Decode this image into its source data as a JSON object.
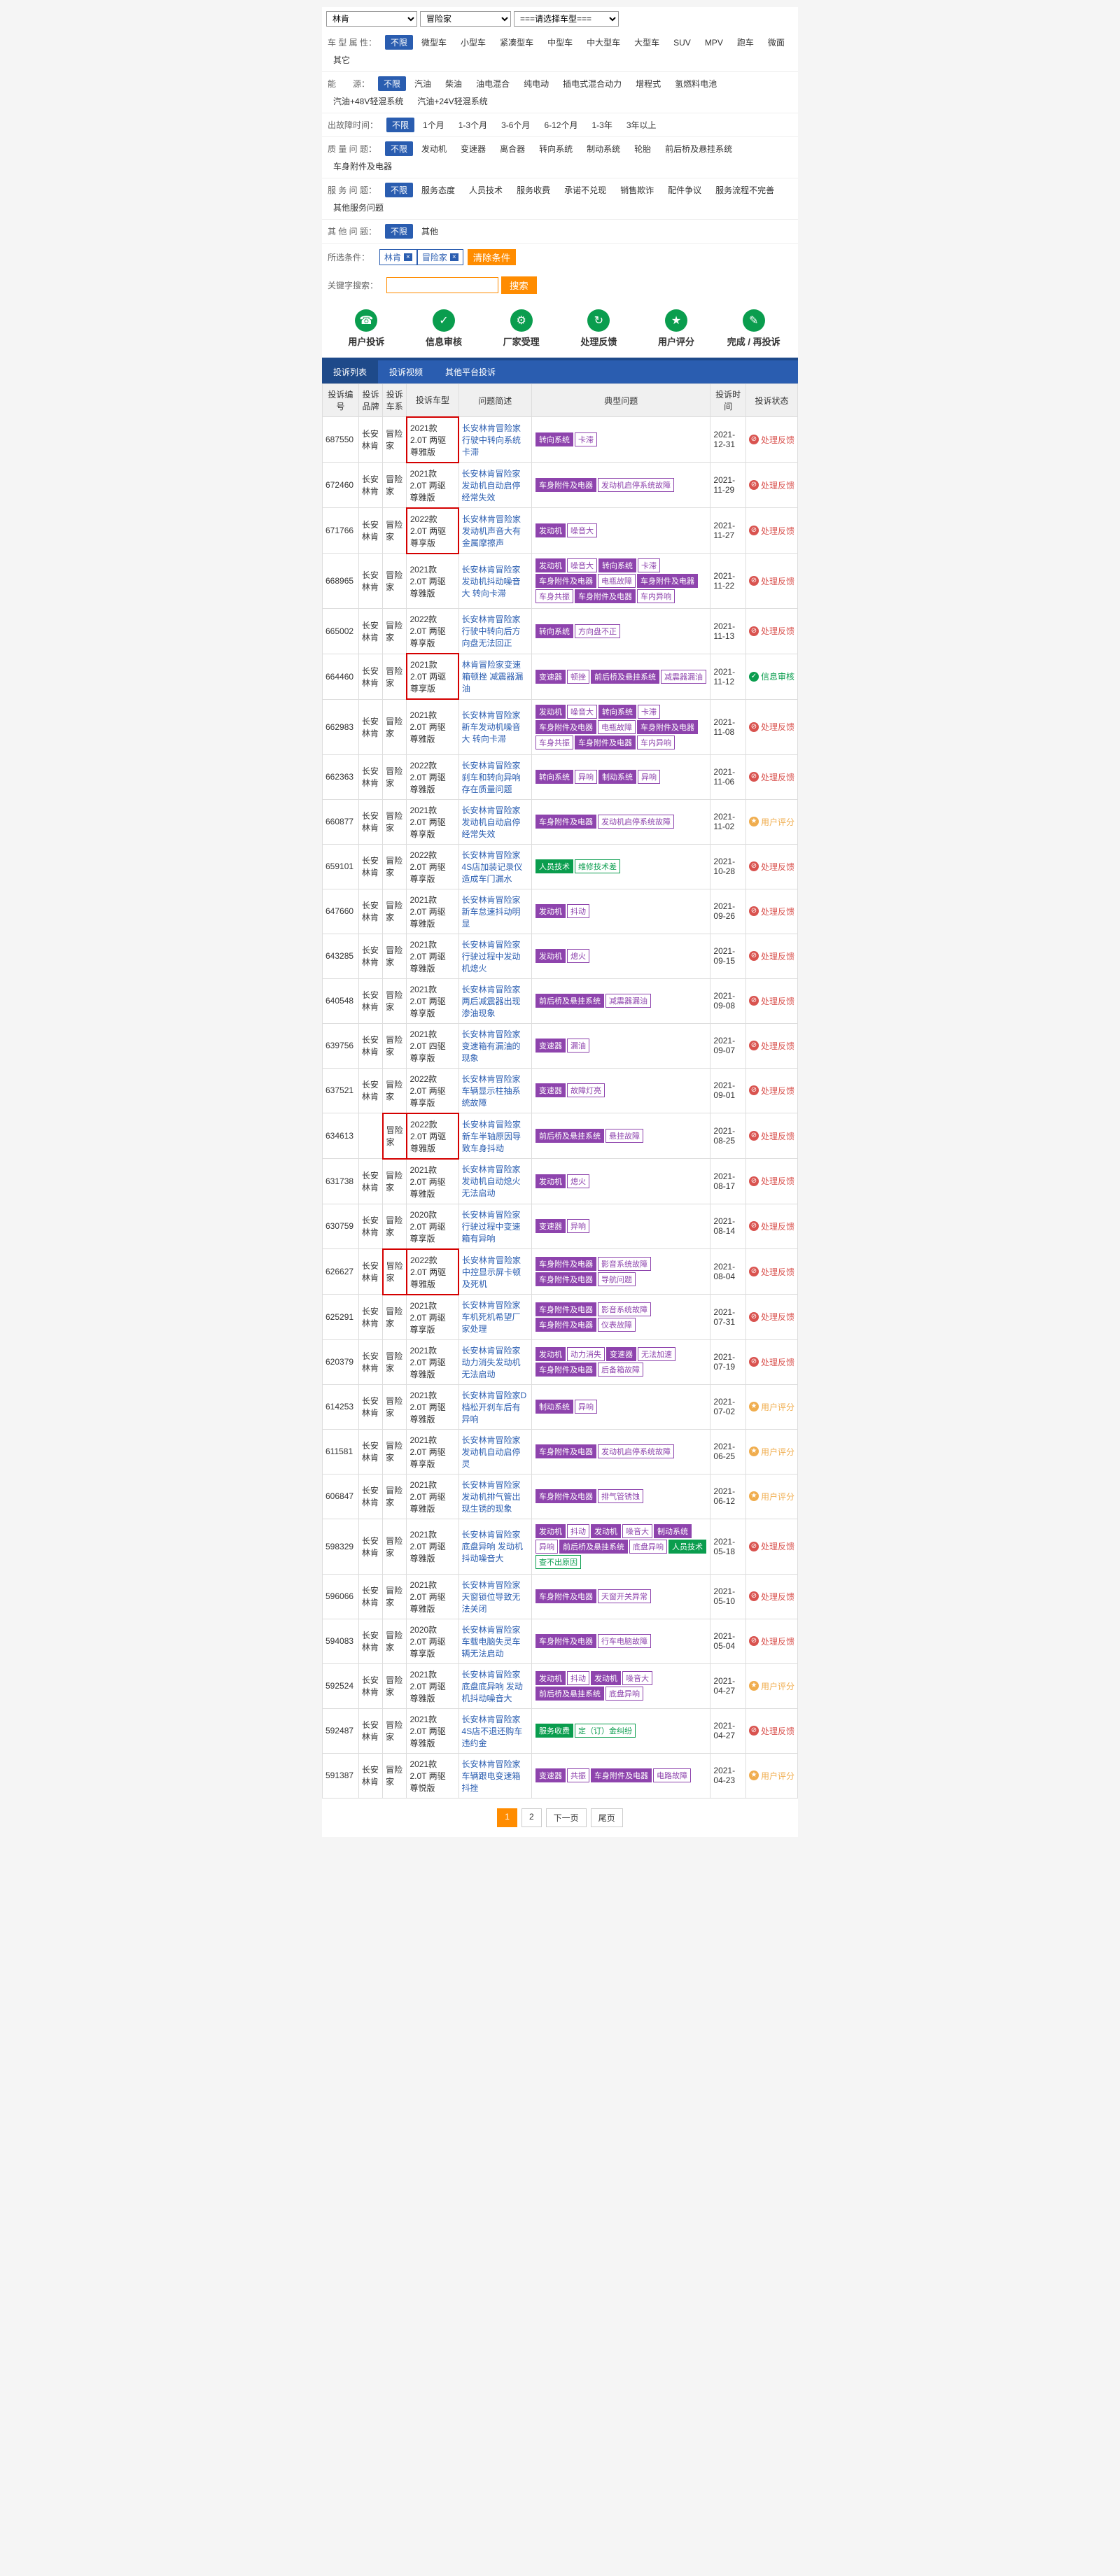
{
  "selects": {
    "brand": "林肯",
    "series": "冒险家",
    "model": "===请选择车型==="
  },
  "filters": [
    {
      "label": "车 型 属 性：",
      "active": "不限",
      "items": [
        "微型车",
        "小型车",
        "紧凑型车",
        "中型车",
        "中大型车",
        "大型车",
        "SUV",
        "MPV",
        "跑车",
        "微面",
        "其它"
      ]
    },
    {
      "label": "能　　源：",
      "active": "不限",
      "items": [
        "汽油",
        "柴油",
        "油电混合",
        "纯电动",
        "插电式混合动力",
        "增程式",
        "氢燃料电池",
        "汽油+48V轻混系统",
        "汽油+24V轻混系统"
      ]
    },
    {
      "label": "出故障时间：",
      "active": "不限",
      "items": [
        "1个月",
        "1-3个月",
        "3-6个月",
        "6-12个月",
        "1-3年",
        "3年以上"
      ]
    },
    {
      "label": "质 量 问 题：",
      "active": "不限",
      "items": [
        "发动机",
        "变速器",
        "离合器",
        "转向系统",
        "制动系统",
        "轮胎",
        "前后桥及悬挂系统",
        "车身附件及电器"
      ]
    },
    {
      "label": "服 务 问 题：",
      "active": "不限",
      "items": [
        "服务态度",
        "人员技术",
        "服务收费",
        "承诺不兑现",
        "销售欺诈",
        "配件争议",
        "服务流程不完善",
        "其他服务问题"
      ]
    },
    {
      "label": "其 他 问 题：",
      "active": "不限",
      "items": [
        "其他"
      ]
    }
  ],
  "conditions": {
    "label": "所选条件：",
    "tags": [
      "林肯",
      "冒险家"
    ],
    "clear": "清除条件"
  },
  "search": {
    "label": "关键字搜索：",
    "btn": "搜索"
  },
  "steps": [
    "用户投诉",
    "信息审核",
    "厂家受理",
    "处理反馈",
    "用户评分",
    "完成 / 再投诉"
  ],
  "step_icons": [
    "☎",
    "✓",
    "⚙",
    "↻",
    "★",
    "✎"
  ],
  "tabs": [
    "投诉列表",
    "投诉视频",
    "其他平台投诉"
  ],
  "columns": [
    "投诉编号",
    "投诉品牌",
    "投诉车系",
    "投诉车型",
    "问题简述",
    "典型问题",
    "投诉时间",
    "投诉状态"
  ],
  "status_map": {
    "处理反馈": {
      "cls": "red",
      "ico": "⊘"
    },
    "信息审核": {
      "cls": "green",
      "ico": "✓"
    },
    "用户评分": {
      "cls": "orange",
      "ico": "★"
    }
  },
  "rows": [
    {
      "id": "687550",
      "brand": "长安林肯",
      "series": "冒险家",
      "model": "2021款 2.0T 两驱 尊雅版",
      "desc": "长安林肯冒险家行驶中转向系统卡滞",
      "tags": [
        {
          "t": "转向系统",
          "s": "purple-fill"
        },
        {
          "t": "卡滞",
          "s": "purple-out"
        }
      ],
      "date": "2021-12-31",
      "status": "处理反馈",
      "redbox": "model"
    },
    {
      "id": "672460",
      "brand": "长安林肯",
      "series": "冒险家",
      "model": "2021款 2.0T 两驱 尊雅版",
      "desc": "长安林肯冒险家发动机自动启停经常失效",
      "tags": [
        {
          "t": "车身附件及电器",
          "s": "purple-fill"
        },
        {
          "t": "发动机启停系统故障",
          "s": "purple-out"
        }
      ],
      "date": "2021-11-29",
      "status": "处理反馈"
    },
    {
      "id": "671766",
      "brand": "长安林肯",
      "series": "冒险家",
      "model": "2022款 2.0T 两驱 尊享版",
      "desc": "长安林肯冒险家发动机声音大有金属摩擦声",
      "tags": [
        {
          "t": "发动机",
          "s": "purple-fill"
        },
        {
          "t": "噪音大",
          "s": "purple-out"
        }
      ],
      "date": "2021-11-27",
      "status": "处理反馈",
      "redbox": "model"
    },
    {
      "id": "668965",
      "brand": "长安林肯",
      "series": "冒险家",
      "model": "2021款 2.0T 两驱 尊雅版",
      "desc": "长安林肯冒险家发动机抖动噪音大 转向卡滞",
      "tags": [
        {
          "t": "发动机",
          "s": "purple-fill"
        },
        {
          "t": "噪音大",
          "s": "purple-out"
        },
        {
          "t": "转向系统",
          "s": "purple-fill"
        },
        {
          "t": "卡滞",
          "s": "purple-out"
        },
        {
          "t": "车身附件及电器",
          "s": "purple-fill"
        },
        {
          "t": "电瓶故障",
          "s": "purple-out"
        },
        {
          "t": "车身附件及电器",
          "s": "purple-fill"
        },
        {
          "t": "车身共振",
          "s": "purple-out"
        },
        {
          "t": "车身附件及电器",
          "s": "purple-fill"
        },
        {
          "t": "车内异响",
          "s": "purple-out"
        }
      ],
      "date": "2021-11-22",
      "status": "处理反馈"
    },
    {
      "id": "665002",
      "brand": "长安林肯",
      "series": "冒险家",
      "model": "2022款 2.0T 两驱 尊享版",
      "desc": "长安林肯冒险家行驶中转向后方向盘无法回正",
      "tags": [
        {
          "t": "转向系统",
          "s": "purple-fill"
        },
        {
          "t": "方向盘不正",
          "s": "purple-out"
        }
      ],
      "date": "2021-11-13",
      "status": "处理反馈"
    },
    {
      "id": "664460",
      "brand": "长安林肯",
      "series": "冒险家",
      "model": "2021款 2.0T 两驱 尊享版",
      "desc": "林肯冒险家变速箱顿挫 减震器漏油",
      "tags": [
        {
          "t": "变速器",
          "s": "purple-fill"
        },
        {
          "t": "顿挫",
          "s": "purple-out"
        },
        {
          "t": "前后桥及悬挂系统",
          "s": "purple-fill"
        },
        {
          "t": "减震器漏油",
          "s": "purple-out"
        }
      ],
      "date": "2021-11-12",
      "status": "信息审核",
      "redbox": "model"
    },
    {
      "id": "662983",
      "brand": "长安林肯",
      "series": "冒险家",
      "model": "2021款 2.0T 两驱 尊雅版",
      "desc": "长安林肯冒险家新车发动机噪音大 转向卡滞",
      "tags": [
        {
          "t": "发动机",
          "s": "purple-fill"
        },
        {
          "t": "噪音大",
          "s": "purple-out"
        },
        {
          "t": "转向系统",
          "s": "purple-fill"
        },
        {
          "t": "卡滞",
          "s": "purple-out"
        },
        {
          "t": "车身附件及电器",
          "s": "purple-fill"
        },
        {
          "t": "电瓶故障",
          "s": "purple-out"
        },
        {
          "t": "车身附件及电器",
          "s": "purple-fill"
        },
        {
          "t": "车身共振",
          "s": "purple-out"
        },
        {
          "t": "车身附件及电器",
          "s": "purple-fill"
        },
        {
          "t": "车内异响",
          "s": "purple-out"
        }
      ],
      "date": "2021-11-08",
      "status": "处理反馈"
    },
    {
      "id": "662363",
      "brand": "长安林肯",
      "series": "冒险家",
      "model": "2022款 2.0T 两驱 尊雅版",
      "desc": "长安林肯冒险家刹车和转向异响存在质量问题",
      "tags": [
        {
          "t": "转向系统",
          "s": "purple-fill"
        },
        {
          "t": "异响",
          "s": "purple-out"
        },
        {
          "t": "制动系统",
          "s": "purple-fill"
        },
        {
          "t": "异响",
          "s": "purple-out"
        }
      ],
      "date": "2021-11-06",
      "status": "处理反馈"
    },
    {
      "id": "660877",
      "brand": "长安林肯",
      "series": "冒险家",
      "model": "2021款 2.0T 两驱 尊享版",
      "desc": "长安林肯冒险家发动机自动启停经常失效",
      "tags": [
        {
          "t": "车身附件及电器",
          "s": "purple-fill"
        },
        {
          "t": "发动机启停系统故障",
          "s": "purple-out"
        }
      ],
      "date": "2021-11-02",
      "status": "用户评分"
    },
    {
      "id": "659101",
      "brand": "长安林肯",
      "series": "冒险家",
      "model": "2022款 2.0T 两驱 尊享版",
      "desc": "长安林肯冒险家4S店加装记录仪造成车门漏水",
      "tags": [
        {
          "t": "人员技术",
          "s": "green-fill"
        },
        {
          "t": "维修技术差",
          "s": "green-out"
        }
      ],
      "date": "2021-10-28",
      "status": "处理反馈"
    },
    {
      "id": "647660",
      "brand": "长安林肯",
      "series": "冒险家",
      "model": "2021款 2.0T 两驱 尊雅版",
      "desc": "长安林肯冒险家新车怠速抖动明显",
      "tags": [
        {
          "t": "发动机",
          "s": "purple-fill"
        },
        {
          "t": "抖动",
          "s": "purple-out"
        }
      ],
      "date": "2021-09-26",
      "status": "处理反馈"
    },
    {
      "id": "643285",
      "brand": "长安林肯",
      "series": "冒险家",
      "model": "2021款 2.0T 两驱 尊雅版",
      "desc": "长安林肯冒险家行驶过程中发动机熄火",
      "tags": [
        {
          "t": "发动机",
          "s": "purple-fill"
        },
        {
          "t": "熄火",
          "s": "purple-out"
        }
      ],
      "date": "2021-09-15",
      "status": "处理反馈"
    },
    {
      "id": "640548",
      "brand": "长安林肯",
      "series": "冒险家",
      "model": "2021款 2.0T 两驱 尊享版",
      "desc": "长安林肯冒险家两后减震器出现渗油现象",
      "tags": [
        {
          "t": "前后桥及悬挂系统",
          "s": "purple-fill"
        },
        {
          "t": "减震器漏油",
          "s": "purple-out"
        }
      ],
      "date": "2021-09-08",
      "status": "处理反馈"
    },
    {
      "id": "639756",
      "brand": "长安林肯",
      "series": "冒险家",
      "model": "2021款 2.0T 四驱 尊享版",
      "desc": "长安林肯冒险家变速箱有漏油的现象",
      "tags": [
        {
          "t": "变速器",
          "s": "purple-fill"
        },
        {
          "t": "漏油",
          "s": "purple-out"
        }
      ],
      "date": "2021-09-07",
      "status": "处理反馈"
    },
    {
      "id": "637521",
      "brand": "长安林肯",
      "series": "冒险家",
      "model": "2022款 2.0T 两驱 尊享版",
      "desc": "长安林肯冒险家车辆显示柱抽系统故障",
      "tags": [
        {
          "t": "变速器",
          "s": "purple-fill"
        },
        {
          "t": "故障灯亮",
          "s": "purple-out"
        }
      ],
      "date": "2021-09-01",
      "status": "处理反馈"
    },
    {
      "id": "634613",
      "brand": "",
      "series": "冒险家",
      "model": "2022款 2.0T 两驱 尊雅版",
      "desc": "长安林肯冒险家新车半轴原因导致车身抖动",
      "tags": [
        {
          "t": "前后桥及悬挂系统",
          "s": "purple-fill"
        },
        {
          "t": "悬挂故障",
          "s": "purple-out"
        }
      ],
      "date": "2021-08-25",
      "status": "处理反馈",
      "redbox": "series"
    },
    {
      "id": "631738",
      "brand": "长安林肯",
      "series": "冒险家",
      "model": "2021款 2.0T 两驱 尊雅版",
      "desc": "长安林肯冒险家发动机自动熄火无法启动",
      "tags": [
        {
          "t": "发动机",
          "s": "purple-fill"
        },
        {
          "t": "熄火",
          "s": "purple-out"
        }
      ],
      "date": "2021-08-17",
      "status": "处理反馈"
    },
    {
      "id": "630759",
      "brand": "长安林肯",
      "series": "冒险家",
      "model": "2020款 2.0T 两驱 尊享版",
      "desc": "长安林肯冒险家行驶过程中变速箱有异响",
      "tags": [
        {
          "t": "变速器",
          "s": "purple-fill"
        },
        {
          "t": "异响",
          "s": "purple-out"
        }
      ],
      "date": "2021-08-14",
      "status": "处理反馈"
    },
    {
      "id": "626627",
      "brand": "长安林肯",
      "series": "冒险家",
      "model": "2022款 2.0T 两驱 尊雅版",
      "desc": "长安林肯冒险家中控显示屏卡顿及死机",
      "tags": [
        {
          "t": "车身附件及电器",
          "s": "purple-fill"
        },
        {
          "t": "影音系统故障",
          "s": "purple-out"
        },
        {
          "t": "车身附件及电器",
          "s": "purple-fill"
        },
        {
          "t": "导航问题",
          "s": "purple-out"
        }
      ],
      "date": "2021-08-04",
      "status": "处理反馈",
      "redbox": "series"
    },
    {
      "id": "625291",
      "brand": "长安林肯",
      "series": "冒险家",
      "model": "2021款 2.0T 两驱 尊享版",
      "desc": "长安林肯冒险家车机死机希望厂家处理",
      "tags": [
        {
          "t": "车身附件及电器",
          "s": "purple-fill"
        },
        {
          "t": "影音系统故障",
          "s": "purple-out"
        },
        {
          "t": "车身附件及电器",
          "s": "purple-fill"
        },
        {
          "t": "仪表故障",
          "s": "purple-out"
        }
      ],
      "date": "2021-07-31",
      "status": "处理反馈"
    },
    {
      "id": "620379",
      "brand": "长安林肯",
      "series": "冒险家",
      "model": "2021款 2.0T 两驱 尊雅版",
      "desc": "长安林肯冒险家动力消失发动机无法启动",
      "tags": [
        {
          "t": "发动机",
          "s": "purple-fill"
        },
        {
          "t": "动力消失",
          "s": "purple-out"
        },
        {
          "t": "变速器",
          "s": "purple-fill"
        },
        {
          "t": "无法加速",
          "s": "purple-out"
        },
        {
          "t": "车身附件及电器",
          "s": "purple-fill"
        },
        {
          "t": "后备箱故障",
          "s": "purple-out"
        }
      ],
      "date": "2021-07-19",
      "status": "处理反馈"
    },
    {
      "id": "614253",
      "brand": "长安林肯",
      "series": "冒险家",
      "model": "2021款 2.0T 两驱 尊雅版",
      "desc": "长安林肯冒险家D档松开刹车后有异响",
      "tags": [
        {
          "t": "制动系统",
          "s": "purple-fill"
        },
        {
          "t": "异响",
          "s": "purple-out"
        }
      ],
      "date": "2021-07-02",
      "status": "用户评分"
    },
    {
      "id": "611581",
      "brand": "长安林肯",
      "series": "冒险家",
      "model": "2021款 2.0T 两驱 尊享版",
      "desc": "长安林肯冒险家发动机自动启停灵",
      "tags": [
        {
          "t": "车身附件及电器",
          "s": "purple-fill"
        },
        {
          "t": "发动机启停系统故障",
          "s": "purple-out"
        }
      ],
      "date": "2021-06-25",
      "status": "用户评分"
    },
    {
      "id": "606847",
      "brand": "长安林肯",
      "series": "冒险家",
      "model": "2021款 2.0T 两驱 尊雅版",
      "desc": "长安林肯冒险家发动机排气管出现生锈的现象",
      "tags": [
        {
          "t": "车身附件及电器",
          "s": "purple-fill"
        },
        {
          "t": "排气管锈蚀",
          "s": "purple-out"
        }
      ],
      "date": "2021-06-12",
      "status": "用户评分"
    },
    {
      "id": "598329",
      "brand": "长安林肯",
      "series": "冒险家",
      "model": "2021款 2.0T 两驱 尊雅版",
      "desc": "长安林肯冒险家底盘异响 发动机抖动噪音大",
      "tags": [
        {
          "t": "发动机",
          "s": "purple-fill"
        },
        {
          "t": "抖动",
          "s": "purple-out"
        },
        {
          "t": "发动机",
          "s": "purple-fill"
        },
        {
          "t": "噪音大",
          "s": "purple-out"
        },
        {
          "t": "制动系统",
          "s": "purple-fill"
        },
        {
          "t": "异响",
          "s": "purple-out"
        },
        {
          "t": "前后桥及悬挂系统",
          "s": "purple-fill"
        },
        {
          "t": "底盘异响",
          "s": "purple-out"
        },
        {
          "t": "人员技术",
          "s": "green-fill"
        },
        {
          "t": "查不出原因",
          "s": "green-out"
        }
      ],
      "date": "2021-05-18",
      "status": "处理反馈"
    },
    {
      "id": "596066",
      "brand": "长安林肯",
      "series": "冒险家",
      "model": "2021款 2.0T 两驱 尊雅版",
      "desc": "长安林肯冒险家天窗锁位导致无法关闭",
      "tags": [
        {
          "t": "车身附件及电器",
          "s": "purple-fill"
        },
        {
          "t": "天窗开关异常",
          "s": "purple-out"
        }
      ],
      "date": "2021-05-10",
      "status": "处理反馈"
    },
    {
      "id": "594083",
      "brand": "长安林肯",
      "series": "冒险家",
      "model": "2020款 2.0T 两驱 尊享版",
      "desc": "长安林肯冒险家车载电脑失灵车辆无法启动",
      "tags": [
        {
          "t": "车身附件及电器",
          "s": "purple-fill"
        },
        {
          "t": "行车电脑故障",
          "s": "purple-out"
        }
      ],
      "date": "2021-05-04",
      "status": "处理反馈"
    },
    {
      "id": "592524",
      "brand": "长安林肯",
      "series": "冒险家",
      "model": "2021款 2.0T 两驱 尊雅版",
      "desc": "长安林肯冒险家底盘底异响 发动机抖动噪音大",
      "tags": [
        {
          "t": "发动机",
          "s": "purple-fill"
        },
        {
          "t": "抖动",
          "s": "purple-out"
        },
        {
          "t": "发动机",
          "s": "purple-fill"
        },
        {
          "t": "噪音大",
          "s": "purple-out"
        },
        {
          "t": "前后桥及悬挂系统",
          "s": "purple-fill"
        },
        {
          "t": "底盘异响",
          "s": "purple-out"
        }
      ],
      "date": "2021-04-27",
      "status": "用户评分"
    },
    {
      "id": "592487",
      "brand": "长安林肯",
      "series": "冒险家",
      "model": "2021款 2.0T 两驱 尊雅版",
      "desc": "长安林肯冒险家4S店不退还购车违约金",
      "tags": [
        {
          "t": "服务收费",
          "s": "green-fill"
        },
        {
          "t": "定（订）金纠纷",
          "s": "green-out"
        }
      ],
      "date": "2021-04-27",
      "status": "处理反馈"
    },
    {
      "id": "591387",
      "brand": "长安林肯",
      "series": "冒险家",
      "model": "2021款 2.0T 两驱 尊悦版",
      "desc": "长安林肯冒险家车辆跟电变速箱抖挫",
      "tags": [
        {
          "t": "变速器",
          "s": "purple-fill"
        },
        {
          "t": "共振",
          "s": "purple-out"
        },
        {
          "t": "车身附件及电器",
          "s": "purple-fill"
        },
        {
          "t": "电路故障",
          "s": "purple-out"
        }
      ],
      "date": "2021-04-23",
      "status": "用户评分"
    }
  ],
  "pager": {
    "pages": [
      "1",
      "2"
    ],
    "next": "下一页",
    "last": "尾页",
    "active": "1"
  }
}
